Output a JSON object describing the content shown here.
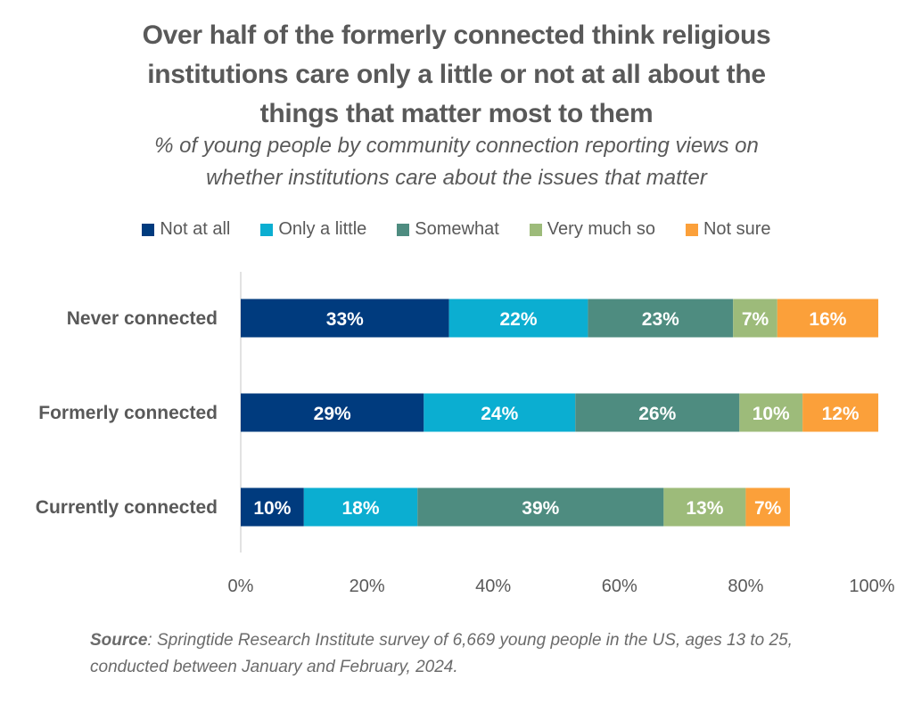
{
  "chart_data": {
    "type": "bar",
    "orientation": "horizontal",
    "stacked": true,
    "title": "Over half of the formerly connected think religious institutions care only a little or not at all about the things that matter most to them",
    "title_lines": [
      "Over half of the formerly connected think religious",
      "institutions care only a little or not at all about the",
      "things that matter most to them"
    ],
    "subtitle_lines": [
      "% of young people by community connection reporting views on",
      "whether institutions care about the issues that matter"
    ],
    "categories": [
      "Never connected",
      "Formerly connected",
      "Currently connected"
    ],
    "series": [
      {
        "name": "Not at all",
        "color": "#003B7E",
        "values": [
          33,
          29,
          10
        ]
      },
      {
        "name": "Only a little",
        "color": "#0BAED1",
        "values": [
          22,
          24,
          18
        ]
      },
      {
        "name": "Somewhat",
        "color": "#4E8C80",
        "values": [
          23,
          26,
          39
        ]
      },
      {
        "name": "Very much so",
        "color": "#9DBB7A",
        "values": [
          7,
          10,
          13
        ]
      },
      {
        "name": "Not sure",
        "color": "#FBA03A",
        "values": [
          16,
          12,
          7
        ]
      }
    ],
    "xlim": [
      0,
      100
    ],
    "xticks": [
      "0%",
      "20%",
      "40%",
      "60%",
      "80%",
      "100%"
    ],
    "xlabel": "",
    "ylabel": "",
    "grid": false,
    "legend_position": "top",
    "value_suffix": "%"
  },
  "source": {
    "label": "Source",
    "text": ": Springtide Research Institute survey of 6,669 young people in the US, ages 13 to 25, conducted between January and February, 2024."
  }
}
